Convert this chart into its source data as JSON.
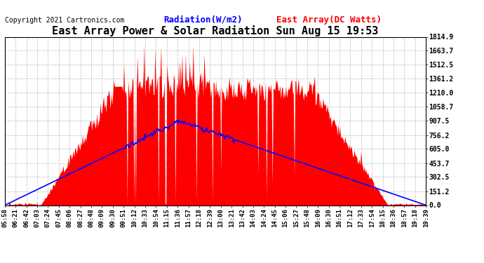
{
  "title": "East Array Power & Solar Radiation Sun Aug 15 19:53",
  "copyright": "Copyright 2021 Cartronics.com",
  "legend_radiation": "Radiation(W/m2)",
  "legend_array": "East Array(DC Watts)",
  "legend_radiation_color": "blue",
  "legend_array_color": "red",
  "yticks": [
    0.0,
    151.2,
    302.5,
    453.7,
    605.0,
    756.2,
    907.5,
    1058.7,
    1210.0,
    1361.2,
    1512.5,
    1663.7,
    1814.9
  ],
  "ymax": 1814.9,
  "ymin": 0.0,
  "background_color": "#ffffff",
  "grid_color": "#aaaaaa",
  "fill_color": "red",
  "line_color": "blue",
  "time_labels": [
    "05:58",
    "06:21",
    "06:42",
    "07:03",
    "07:24",
    "07:45",
    "08:06",
    "08:27",
    "08:48",
    "09:09",
    "09:30",
    "09:51",
    "10:12",
    "10:33",
    "10:54",
    "11:15",
    "11:36",
    "11:57",
    "12:18",
    "12:39",
    "13:00",
    "13:21",
    "13:42",
    "14:03",
    "14:24",
    "14:45",
    "15:06",
    "15:27",
    "15:48",
    "16:09",
    "16:30",
    "16:51",
    "17:12",
    "17:33",
    "17:54",
    "18:15",
    "18:36",
    "18:57",
    "19:18",
    "19:39"
  ],
  "title_fontsize": 11,
  "copyright_fontsize": 7,
  "legend_fontsize": 9,
  "tick_fontsize": 7,
  "fig_width": 6.9,
  "fig_height": 3.75,
  "dpi": 100
}
